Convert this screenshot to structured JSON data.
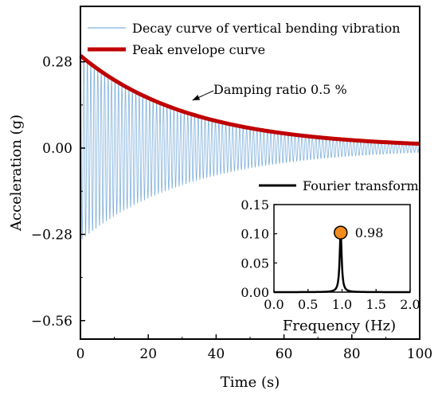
{
  "chart_data": [
    {
      "type": "line",
      "xlabel": "Time (s)",
      "ylabel": "Acceleration (g)",
      "xlim": [
        0,
        100
      ],
      "ylim": [
        -0.62,
        0.46
      ],
      "x_ticks": [
        0,
        20,
        40,
        60,
        80,
        100
      ],
      "x_tick_labels": [
        "0",
        "20",
        "40",
        "60",
        "80",
        "100"
      ],
      "y_ticks": [
        0.28,
        0.0,
        -0.28,
        -0.56
      ],
      "y_tick_labels": [
        "0.28",
        "0.00",
        "−0.28",
        "−0.56"
      ],
      "grid": false,
      "legend_position": "top-right",
      "series": [
        {
          "name": "Decay curve of vertical bending vibration",
          "kind": "damped-oscillation",
          "amplitude_at_t0": 0.3,
          "amplitude_at_t100": 0.014,
          "frequency_hz": 0.98,
          "color": "#7fb0dd"
        },
        {
          "name": "Peak envelope curve",
          "x": [
            0,
            10,
            20,
            30,
            40,
            50,
            60,
            70,
            80,
            90,
            100
          ],
          "y": [
            0.3,
            0.22,
            0.162,
            0.119,
            0.088,
            0.065,
            0.048,
            0.035,
            0.026,
            0.019,
            0.014
          ],
          "color": "#c00000"
        }
      ],
      "annotations": [
        {
          "text": "Damping ratio  0.5 %",
          "arrow_to": {
            "x": 33,
            "y": 0.155
          }
        }
      ]
    },
    {
      "type": "line",
      "title": "Fourier transform",
      "xlabel": "Frequency (Hz)",
      "ylabel": "",
      "xlim": [
        0,
        2.0
      ],
      "ylim": [
        0,
        0.15
      ],
      "x_ticks": [
        0,
        0.5,
        1.0,
        1.5,
        2.0
      ],
      "x_tick_labels": [
        "0.0",
        "0.5",
        "1.0",
        "1.5",
        "2.0"
      ],
      "y_ticks": [
        0,
        0.05,
        0.1,
        0.15
      ],
      "y_tick_labels": [
        "0.00",
        "0.05",
        "0.10",
        "0.15"
      ],
      "series": [
        {
          "name": "Fourier transform",
          "kind": "spectrum-peak",
          "peak_x": 0.98,
          "peak_y": 0.102,
          "color": "#000000"
        }
      ],
      "annotations": [
        {
          "text": "0.98",
          "point": {
            "x": 0.98,
            "y": 0.102
          },
          "marker_color": "#f28c1e"
        }
      ]
    }
  ]
}
